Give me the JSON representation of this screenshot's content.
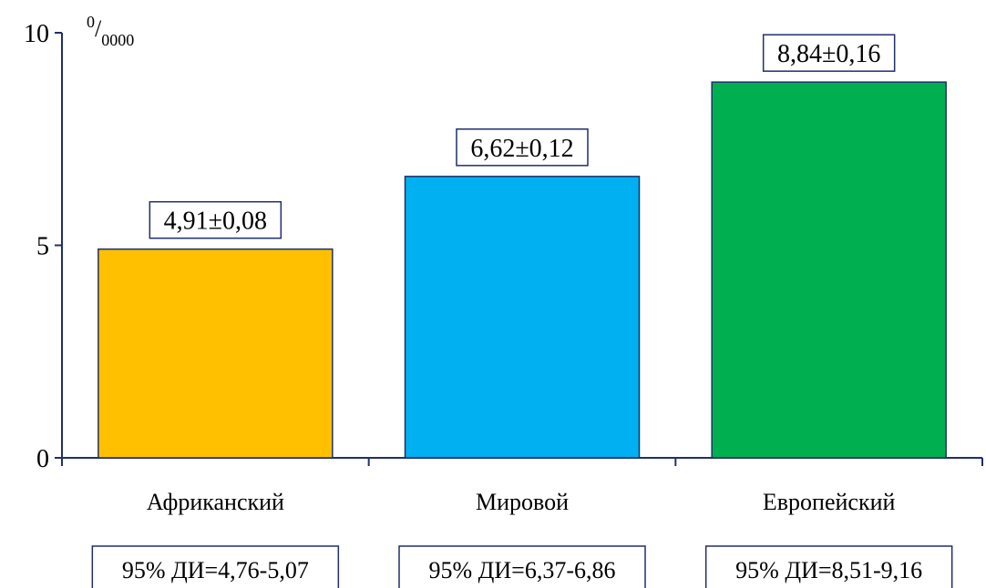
{
  "chart_data": {
    "type": "bar",
    "categories": [
      "Африканский",
      "Мировой",
      "Европейский"
    ],
    "values": [
      4.91,
      6.62,
      8.84
    ],
    "value_labels": [
      "4,91±0,08",
      "6,62±0,12",
      "8,84±0,16"
    ],
    "ci_labels": [
      "95% ДИ=4,76-5,07",
      "95% ДИ=6,37-6,86",
      "95% ДИ=8,51-9,16"
    ],
    "colors": [
      "#FFC000",
      "#00B0F0",
      "#00B050"
    ],
    "yticks": [
      0,
      5,
      10
    ],
    "ytick_labels": [
      "0",
      "5",
      "10"
    ],
    "ylim": [
      0,
      10
    ],
    "unit_label": {
      "base": "0",
      "sep": "/",
      "sub": "0000"
    },
    "grid": false,
    "legend": "none",
    "title": "",
    "xlabel": "",
    "ylabel": ""
  }
}
